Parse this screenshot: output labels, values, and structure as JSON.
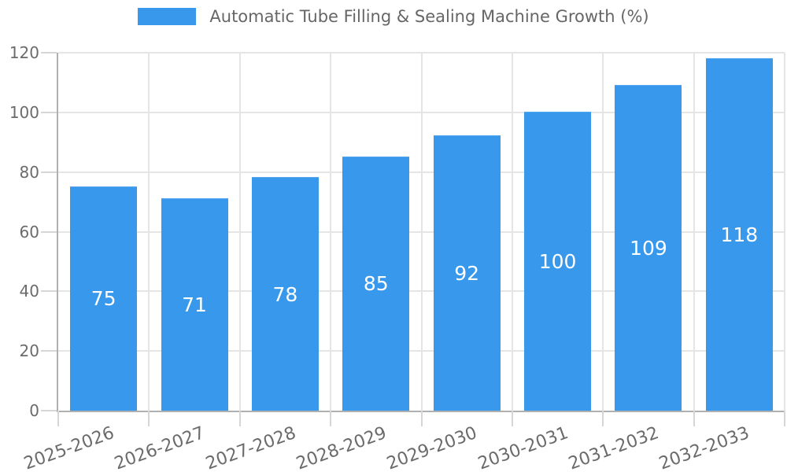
{
  "legend": {
    "label": "Automatic Tube Filling & Sealing Machine Growth (%)"
  },
  "chart_data": {
    "type": "bar",
    "title": "Automatic Tube Filling & Sealing Machine Growth (%)",
    "categories": [
      "2025-2026",
      "2026-2027",
      "2027-2028",
      "2028-2029",
      "2029-2030",
      "2030-2031",
      "2031-2032",
      "2032-2033"
    ],
    "values": [
      75,
      71,
      78,
      85,
      92,
      100,
      109,
      118
    ],
    "bar_value_labels": [
      "75",
      "71",
      "78",
      "85",
      "92",
      "100",
      "109",
      "118"
    ],
    "xlabel": "",
    "ylabel": "",
    "ylim": [
      0,
      120
    ],
    "yticks": [
      0,
      20,
      40,
      60,
      80,
      100,
      120
    ],
    "grid": true,
    "legend_position": "top",
    "x_label_rotation_deg": -20,
    "colors": {
      "bar": "#3899ec",
      "bar_edge": "#54a6ee",
      "bar_value_text": "#ffffff",
      "axis_text": "#6b6b6b",
      "legend_text": "#666666",
      "grid_line": "#e5e5e5",
      "tick_mark": "#d6d6d6",
      "axis_line": "#b0b0b0",
      "background": "#ffffff"
    }
  }
}
